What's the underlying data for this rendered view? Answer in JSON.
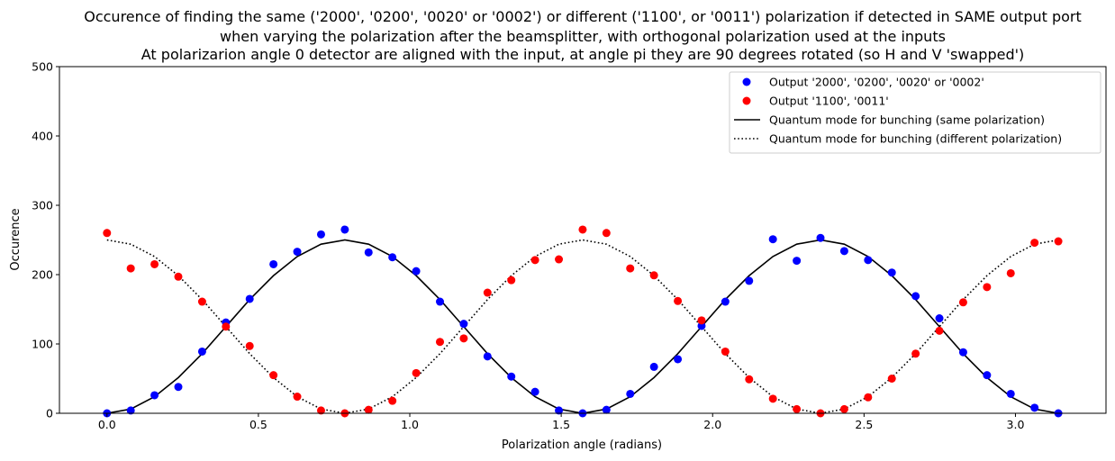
{
  "chart_data": {
    "type": "scatter",
    "title": [
      "Occurence of finding the same ('2000', '0200', '0020' or '0002') or different ('1100', or '0011') polarization if detected in SAME output port",
      "when varying the polarization after the beamsplitter, with orthogonal polarization used at the inputs",
      "At polarizarion angle 0 detector are aligned with the input, at angle pi they are 90 degrees rotated (so H and V 'swapped')"
    ],
    "xlabel": "Polarization angle (radians)",
    "ylabel": "Occurence",
    "xlim": [
      -0.157,
      3.299
    ],
    "ylim": [
      0,
      500
    ],
    "xticks": [
      "0.0",
      "0.5",
      "1.0",
      "1.5",
      "2.0",
      "2.5",
      "3.0"
    ],
    "yticks": [
      "0",
      "100",
      "200",
      "300",
      "400",
      "500"
    ],
    "legend_position": "top-right",
    "x": [
      0.0,
      0.0785,
      0.157,
      0.2356,
      0.3142,
      0.3927,
      0.4712,
      0.5498,
      0.6283,
      0.7069,
      0.7854,
      0.8639,
      0.9425,
      1.021,
      1.0996,
      1.1781,
      1.2566,
      1.3352,
      1.4137,
      1.4923,
      1.5708,
      1.6493,
      1.7279,
      1.8064,
      1.885,
      1.9635,
      2.042,
      2.1206,
      2.1991,
      2.2777,
      2.3562,
      2.4347,
      2.5133,
      2.5918,
      2.6704,
      2.7489,
      2.8274,
      2.906,
      2.9845,
      3.0631,
      3.1416
    ],
    "series": [
      {
        "name": "Output '2000', '0200', '0020' or '0002'",
        "kind": "scatter",
        "color": "#0000ff",
        "values": [
          0,
          4,
          26,
          38,
          89,
          131,
          165,
          215,
          233,
          258,
          265,
          232,
          225,
          205,
          161,
          129,
          82,
          53,
          31,
          4,
          0,
          5,
          28,
          67,
          78,
          126,
          161,
          191,
          251,
          220,
          253,
          234,
          221,
          203,
          169,
          137,
          88,
          55,
          28,
          8,
          0
        ]
      },
      {
        "name": "Output '1100', '0011'",
        "kind": "scatter",
        "color": "#ff0000",
        "values": [
          260,
          209,
          215,
          197,
          161,
          125,
          97,
          55,
          24,
          4,
          0,
          5,
          18,
          58,
          103,
          108,
          174,
          192,
          221,
          222,
          265,
          260,
          209,
          199,
          162,
          134,
          89,
          49,
          21,
          6,
          0,
          6,
          23,
          50,
          86,
          119,
          160,
          182,
          202,
          246,
          248
        ]
      },
      {
        "name": "Quantum mode for bunching (same polarization)",
        "kind": "line",
        "style": "solid",
        "color": "#000000",
        "values": [
          0,
          6.1,
          23.9,
          51.5,
          86.0,
          125.0,
          164.0,
          198.5,
          226.1,
          243.9,
          250,
          243.9,
          226.1,
          198.5,
          164.0,
          125.0,
          86.0,
          51.5,
          23.9,
          6.1,
          0,
          6.1,
          23.9,
          51.5,
          86.0,
          125.0,
          164.0,
          198.5,
          226.1,
          243.9,
          250,
          243.9,
          226.1,
          198.5,
          164.0,
          125.0,
          86.0,
          51.5,
          23.9,
          6.1,
          0
        ]
      },
      {
        "name": "Quantum mode for bunching (different polarization)",
        "kind": "line",
        "style": "dotted",
        "color": "#000000",
        "values": [
          250,
          243.9,
          226.1,
          198.5,
          164.0,
          125.0,
          86.0,
          51.5,
          23.9,
          6.1,
          0,
          6.1,
          23.9,
          51.5,
          86.0,
          125.0,
          164.0,
          198.5,
          226.1,
          243.9,
          250,
          243.9,
          226.1,
          198.5,
          164.0,
          125.0,
          86.0,
          51.5,
          23.9,
          6.1,
          0,
          6.1,
          23.9,
          51.5,
          86.0,
          125.0,
          164.0,
          198.5,
          226.1,
          243.9,
          250
        ]
      }
    ]
  }
}
